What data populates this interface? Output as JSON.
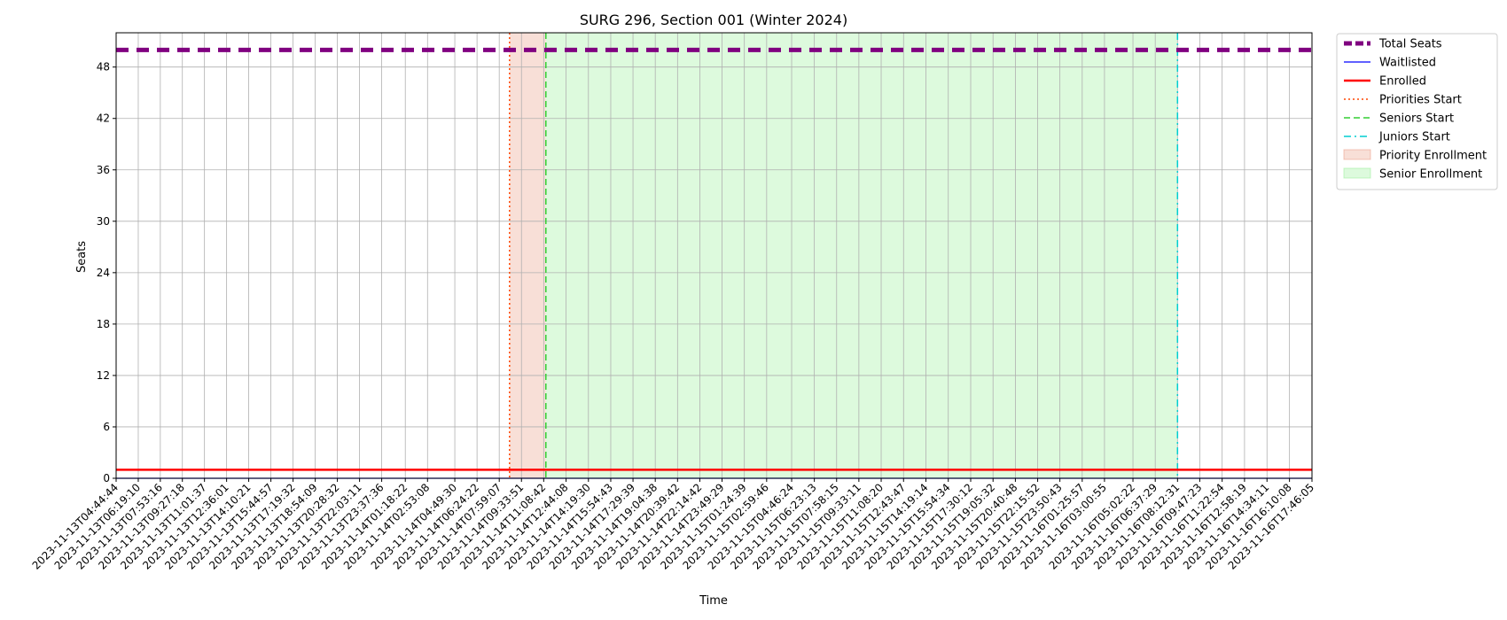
{
  "chart_data": {
    "type": "line",
    "title": "SURG 296, Section 001 (Winter 2024)",
    "xlabel": "Time",
    "ylabel": "Seats",
    "ylim": [
      0,
      52
    ],
    "yticks": [
      0,
      6,
      12,
      18,
      24,
      30,
      36,
      42,
      48
    ],
    "grid": true,
    "legend_position": "outside-upper-right",
    "x": [
      "2023-11-13T04:44:44",
      "2023-11-13T06:19:10",
      "2023-11-13T07:53:16",
      "2023-11-13T09:27:18",
      "2023-11-13T11:01:37",
      "2023-11-13T12:36:01",
      "2023-11-13T14:10:21",
      "2023-11-13T15:44:57",
      "2023-11-13T17:19:32",
      "2023-11-13T18:54:09",
      "2023-11-13T20:28:32",
      "2023-11-13T22:03:11",
      "2023-11-13T23:37:36",
      "2023-11-14T01:18:22",
      "2023-11-14T02:53:08",
      "2023-11-14T04:49:30",
      "2023-11-14T06:24:22",
      "2023-11-14T07:59:07",
      "2023-11-14T09:33:51",
      "2023-11-14T11:08:42",
      "2023-11-14T12:44:08",
      "2023-11-14T14:19:30",
      "2023-11-14T15:54:43",
      "2023-11-14T17:29:39",
      "2023-11-14T19:04:38",
      "2023-11-14T20:39:42",
      "2023-11-14T22:14:42",
      "2023-11-14T23:49:29",
      "2023-11-15T01:24:39",
      "2023-11-15T02:59:46",
      "2023-11-15T04:46:24",
      "2023-11-15T06:23:13",
      "2023-11-15T07:58:15",
      "2023-11-15T09:33:11",
      "2023-11-15T11:08:20",
      "2023-11-15T12:43:47",
      "2023-11-15T14:19:14",
      "2023-11-15T15:54:34",
      "2023-11-15T17:30:12",
      "2023-11-15T19:05:32",
      "2023-11-15T20:40:48",
      "2023-11-15T22:15:52",
      "2023-11-15T23:50:43",
      "2023-11-16T01:25:57",
      "2023-11-16T03:00:55",
      "2023-11-16T05:02:22",
      "2023-11-16T06:37:29",
      "2023-11-16T08:12:31",
      "2023-11-16T09:47:23",
      "2023-11-16T11:22:54",
      "2023-11-16T12:58:19",
      "2023-11-16T14:34:11",
      "2023-11-16T16:10:08",
      "2023-11-16T17:46:05"
    ],
    "series": [
      {
        "name": "Total Seats",
        "color": "#800080",
        "style": "dashed-thick",
        "constant": 50
      },
      {
        "name": "Waitlisted",
        "color": "#0000ff",
        "style": "solid-thin",
        "constant": 0
      },
      {
        "name": "Enrolled",
        "color": "#ff0000",
        "style": "solid",
        "constant": 1
      }
    ],
    "vlines": [
      {
        "name": "Priorities Start",
        "color": "#ff4500",
        "style": "dotted",
        "x": "2023-11-14T08:43"
      },
      {
        "name": "Seniors Start",
        "color": "#32cd32",
        "style": "dashed",
        "x": "2023-11-14T11:18"
      },
      {
        "name": "Juniors Start",
        "color": "#00ced1",
        "style": "dashdot",
        "x": "2023-11-16T08:12:31"
      }
    ],
    "spans": [
      {
        "name": "Priority Enrollment",
        "color": "#e9967a",
        "from": "2023-11-14T08:43",
        "to": "2023-11-14T11:18"
      },
      {
        "name": "Senior Enrollment",
        "color": "#90ee90",
        "from": "2023-11-14T11:18",
        "to": "2023-11-16T08:12:31"
      }
    ],
    "legend": [
      "Total Seats",
      "Waitlisted",
      "Enrolled",
      "Priorities Start",
      "Seniors Start",
      "Juniors Start",
      "Priority Enrollment",
      "Senior Enrollment"
    ]
  }
}
